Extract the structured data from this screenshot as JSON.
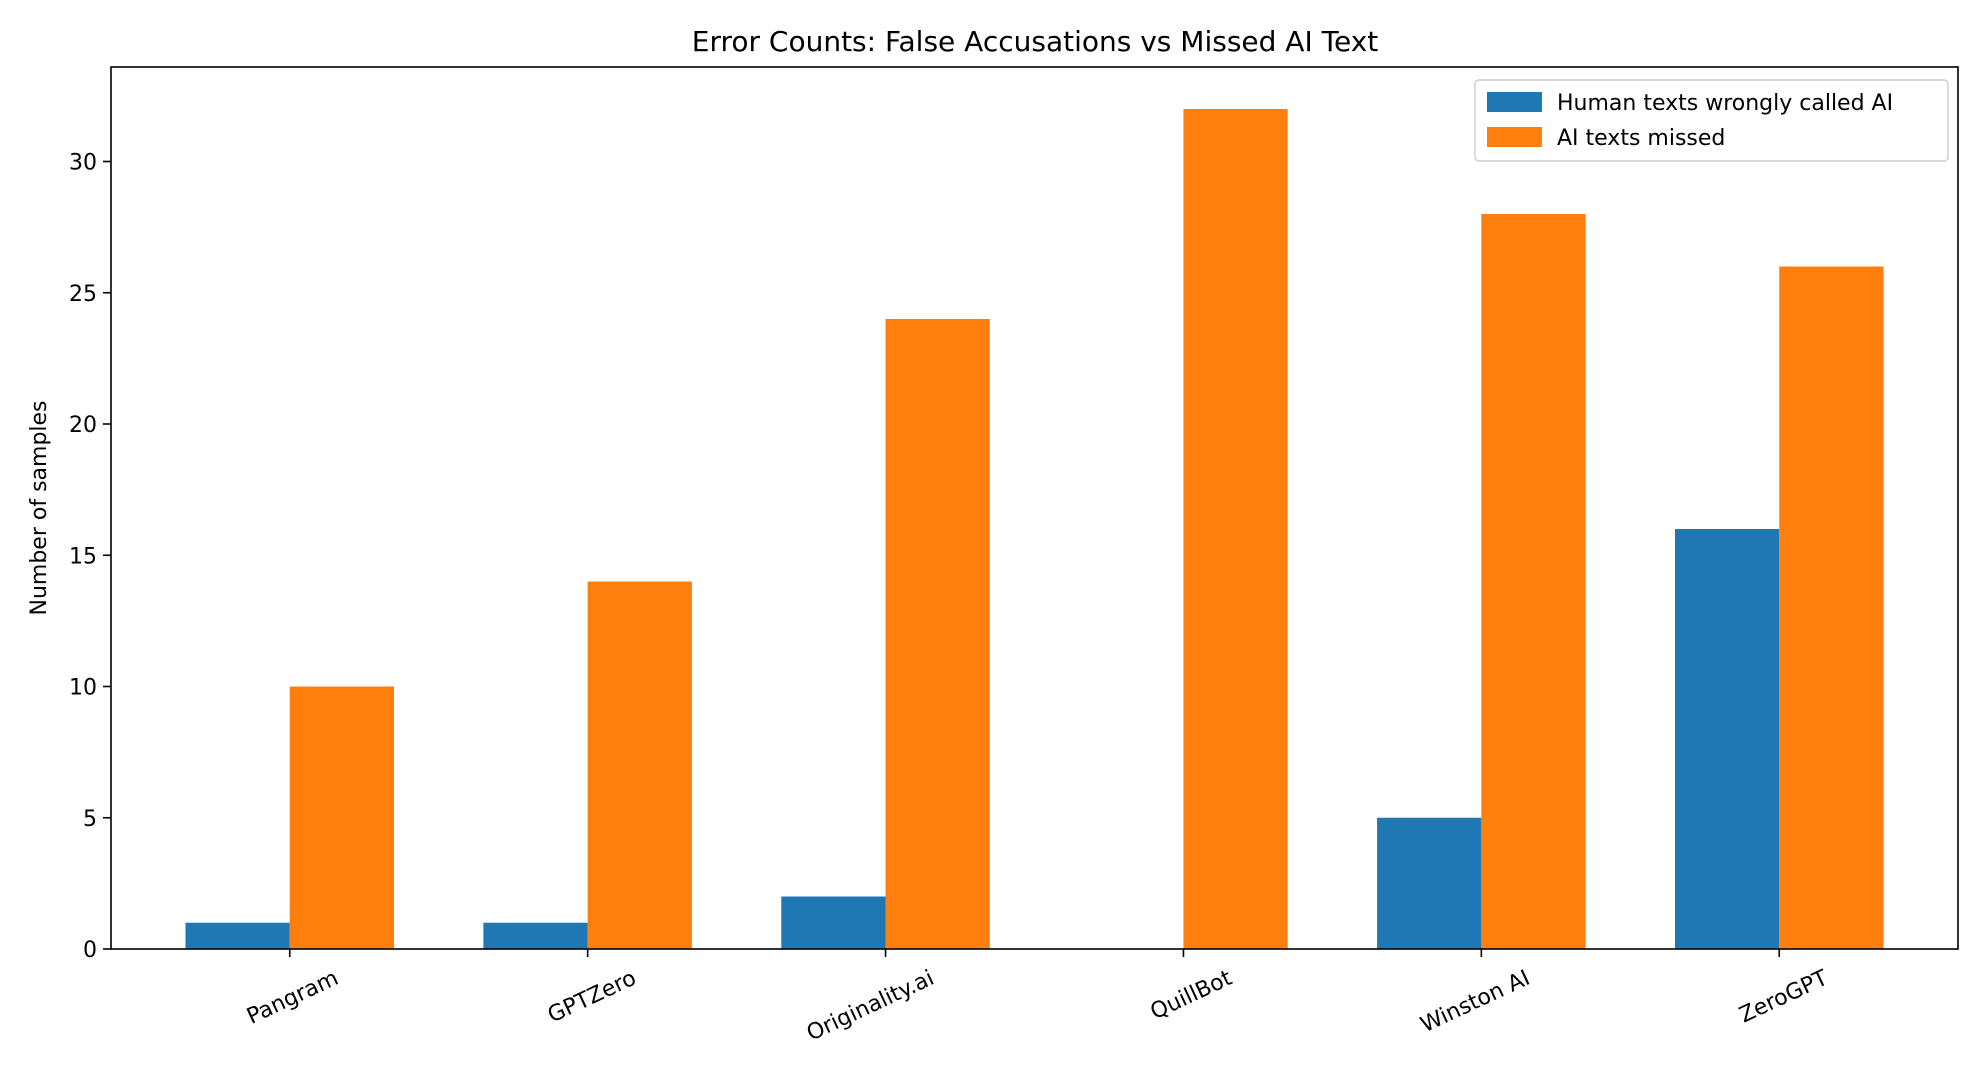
{
  "chart_data": {
    "type": "bar",
    "title": "Error Counts: False Accusations vs Missed AI Text",
    "xlabel": "",
    "ylabel": "Number of samples",
    "categories": [
      "Pangram",
      "GPTZero",
      "Originality.ai",
      "QuillBot",
      "Winston AI",
      "ZeroGPT"
    ],
    "series": [
      {
        "name": "Human texts wrongly called AI",
        "color": "#1f77b4",
        "values": [
          1,
          1,
          2,
          0,
          5,
          16
        ]
      },
      {
        "name": "AI texts missed",
        "color": "#ff7f0e",
        "values": [
          10,
          14,
          24,
          32,
          28,
          26
        ]
      }
    ],
    "ylim": [
      0,
      33.6
    ],
    "yticks": [
      0,
      5,
      10,
      15,
      20,
      25,
      30
    ],
    "xtick_rotation": 25,
    "grid": false,
    "legend_position": "top-right"
  }
}
